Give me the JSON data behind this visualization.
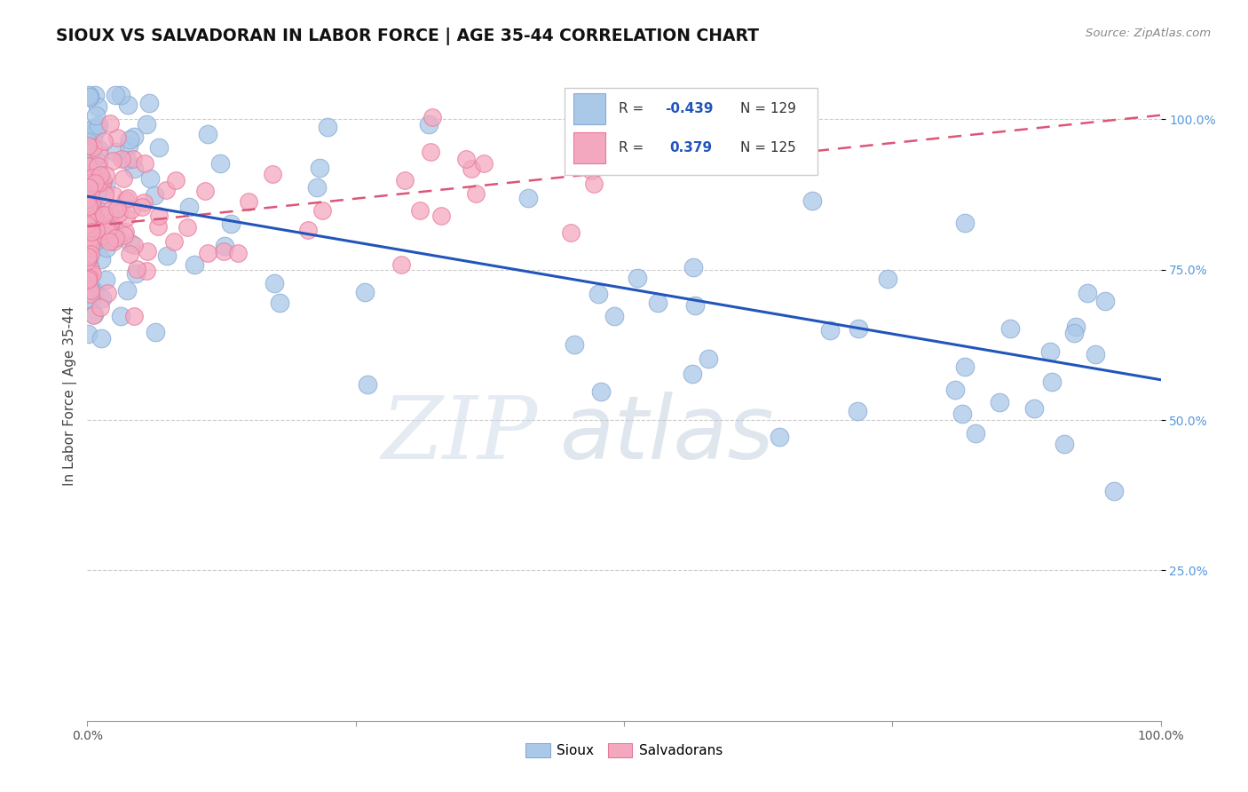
{
  "title": "SIOUX VS SALVADORAN IN LABOR FORCE | AGE 35-44 CORRELATION CHART",
  "source": "Source: ZipAtlas.com",
  "ylabel": "In Labor Force | Age 35-44",
  "x_min": 0.0,
  "x_max": 1.0,
  "y_min": 0.0,
  "y_max": 1.08,
  "blue_color": "#aac8e8",
  "pink_color": "#f4a8c0",
  "blue_edge": "#88aad4",
  "pink_edge": "#e87898",
  "blue_line_color": "#2255bb",
  "pink_line_color": "#dd5577",
  "blue_intercept": 0.872,
  "blue_slope": -0.305,
  "pink_intercept": 0.822,
  "pink_slope": 0.185,
  "watermark_zip": "ZIP",
  "watermark_atlas": "atlas",
  "title_fontsize": 13.5,
  "source_fontsize": 9.5,
  "axis_label_fontsize": 11,
  "tick_fontsize": 10,
  "legend_R_blue": "R = -0.439",
  "legend_N_blue": "N = 129",
  "legend_R_pink": "R =  0.379",
  "legend_N_pink": "N = 125",
  "blue_seed": 12,
  "pink_seed": 37,
  "N_blue": 129,
  "N_pink": 125
}
